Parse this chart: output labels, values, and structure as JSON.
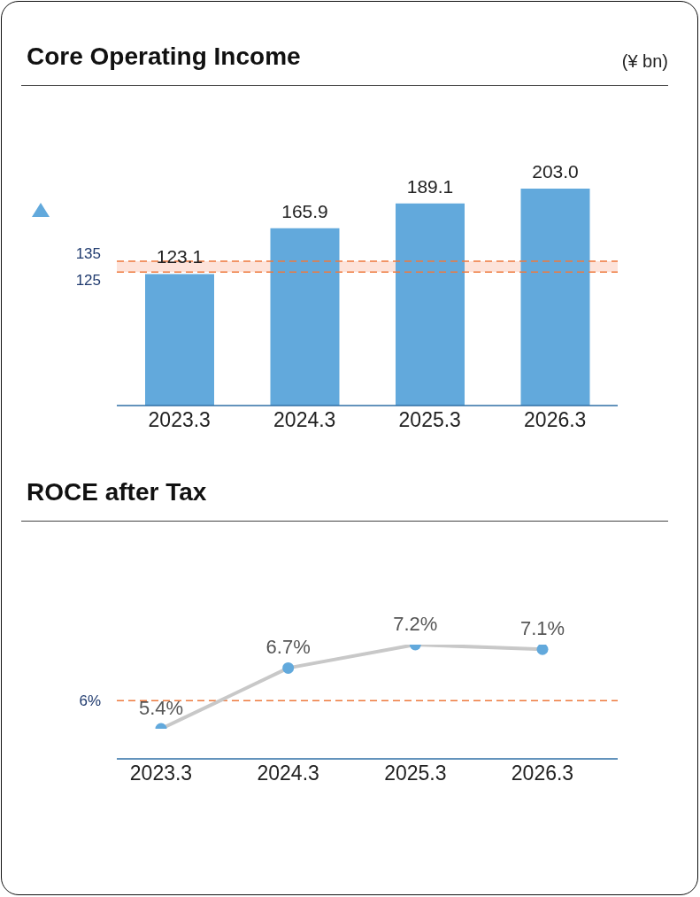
{
  "chart_data": [
    {
      "type": "bar",
      "title": "Core Operating Income",
      "annotations": [
        "(¥ bn)"
      ],
      "categories": [
        "2023.3",
        "2024.3",
        "2025.3",
        "2026.3"
      ],
      "values": [
        123.1,
        165.9,
        189.1,
        203.0
      ],
      "value_labels": [
        "123.1",
        "165.9",
        "189.1",
        "203.0"
      ],
      "color": "#62a9dc",
      "ylim": [
        0,
        203
      ],
      "tick_labels": "x",
      "bands": [
        {
          "axis": "y",
          "from": 125,
          "to": 135,
          "color": "#fde3da"
        }
      ],
      "ref_lines": [
        {
          "axis": "y",
          "value": 135,
          "label": "135",
          "color": "#ee7a3e",
          "line_style": "dashed"
        },
        {
          "axis": "y",
          "value": 125,
          "label": "125",
          "color": "#ee7a3e",
          "line_style": "dashed"
        }
      ]
    },
    {
      "type": "line",
      "title": "ROCE after Tax",
      "categories": [
        "2023.3",
        "2024.3",
        "2025.3",
        "2026.3"
      ],
      "series": [
        {
          "color": "#c8c8c8",
          "colors": [
            "#62a9dc",
            "#62a9dc",
            "#62a9dc",
            "#62a9dc"
          ],
          "values": [
            5.4,
            6.7,
            7.2,
            7.1
          ],
          "value_labels": [
            "5.4%",
            "6.7%",
            "7.2%",
            "7.1%"
          ]
        }
      ],
      "marker": "circle",
      "tick_labels": "x",
      "ref_lines": [
        {
          "axis": "y",
          "value": 6,
          "label": "6%",
          "color": "#ee7a3e",
          "line_style": "dashed"
        }
      ]
    }
  ]
}
